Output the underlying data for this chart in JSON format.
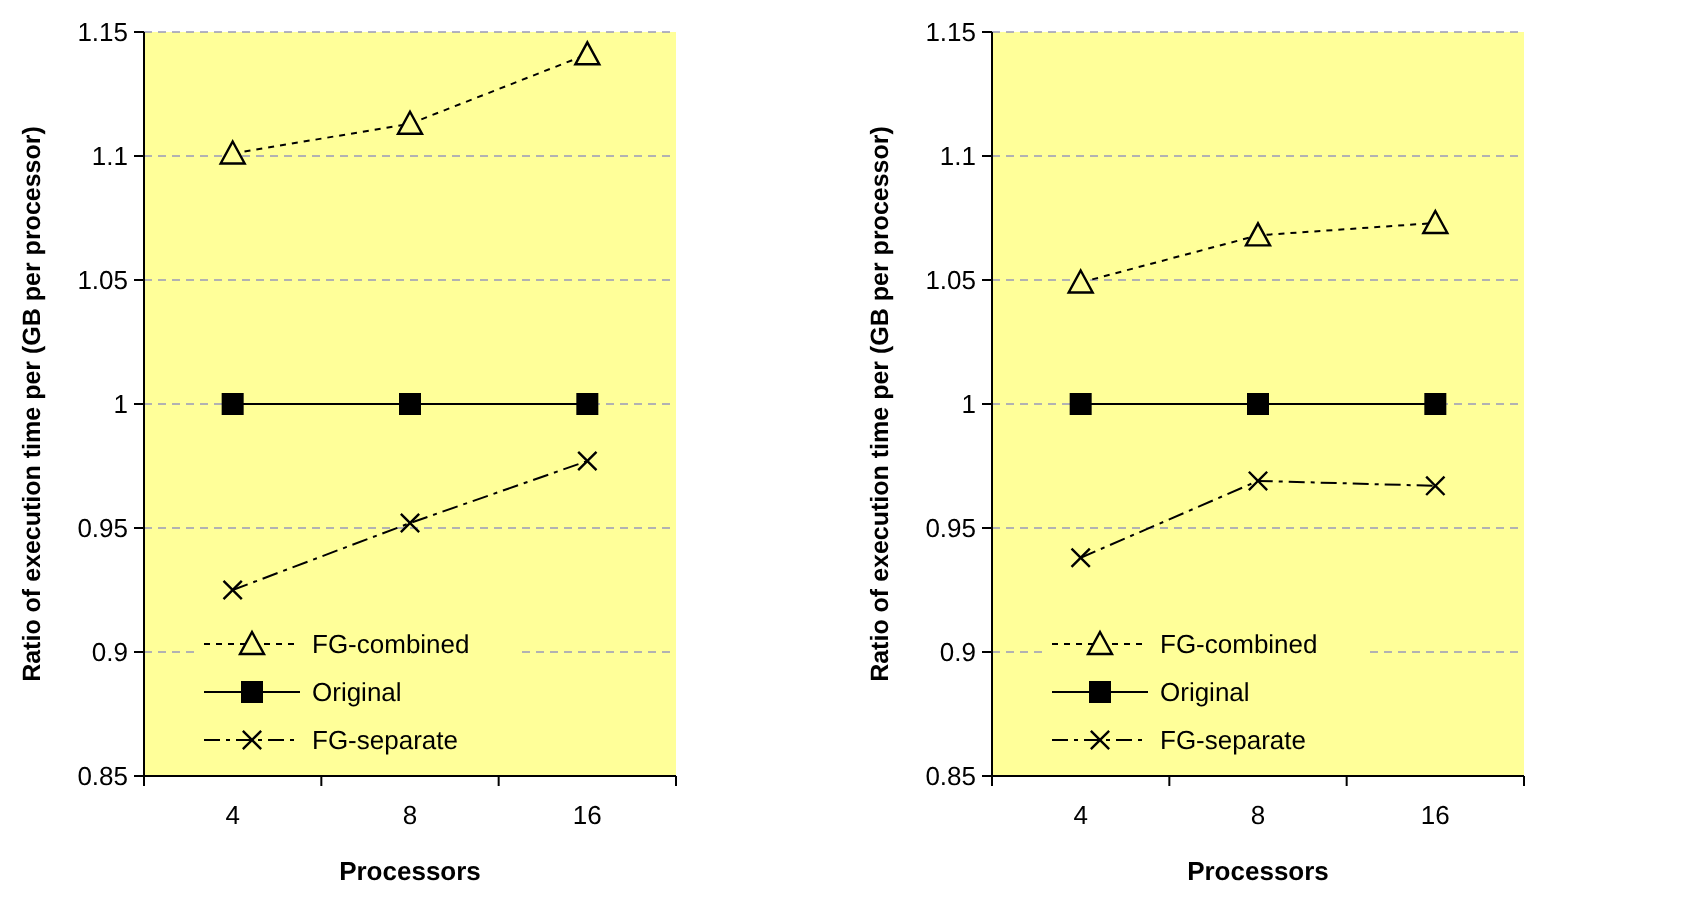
{
  "chart_data": [
    {
      "type": "line",
      "xlabel": "Processors",
      "ylabel": "Ratio of execution time per (GB per processor)",
      "categories": [
        "4",
        "8",
        "16"
      ],
      "ylim": [
        0.85,
        1.15
      ],
      "yticks": [
        0.85,
        0.9,
        0.95,
        1,
        1.05,
        1.1,
        1.15
      ],
      "grid": "y",
      "legend": "bottom left",
      "series": [
        {
          "name": "FG-combined",
          "color": "#000000",
          "marker": "triangle",
          "line_style": "dotted",
          "values": [
            1.101,
            1.113,
            1.141
          ]
        },
        {
          "name": "Original",
          "color": "#000000",
          "marker": "square",
          "line_style": "solid",
          "values": [
            1,
            1,
            1
          ]
        },
        {
          "name": "FG-separate",
          "color": "#000000",
          "marker": "cross",
          "line_style": "dashed",
          "values": [
            0.925,
            0.952,
            0.977
          ]
        }
      ]
    },
    {
      "type": "line",
      "xlabel": "Processors",
      "ylabel": "Ratio of execution time per (GB per processor)",
      "categories": [
        "4",
        "8",
        "16"
      ],
      "ylim": [
        0.85,
        1.15
      ],
      "yticks": [
        0.85,
        0.9,
        0.95,
        1,
        1.05,
        1.1,
        1.15
      ],
      "grid": "y",
      "legend": "bottom left",
      "series": [
        {
          "name": "FG-combined",
          "color": "#000000",
          "marker": "triangle",
          "line_style": "dotted",
          "values": [
            1.049,
            1.068,
            1.073
          ]
        },
        {
          "name": "Original",
          "color": "#000000",
          "marker": "square",
          "line_style": "solid",
          "values": [
            1,
            1,
            1
          ]
        },
        {
          "name": "FG-separate",
          "color": "#000000",
          "marker": "cross",
          "line_style": "dashed",
          "values": [
            0.938,
            0.969,
            0.967
          ]
        }
      ]
    }
  ]
}
